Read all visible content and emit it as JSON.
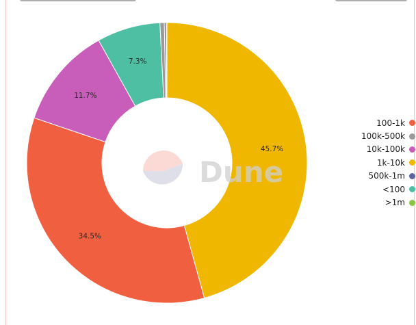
{
  "watermark": {
    "text": "Dune"
  },
  "chart_data": {
    "type": "pie",
    "title": "",
    "slices": [
      {
        "name": "1k-10k",
        "value": 45.7,
        "label": "45.7%",
        "color": "#f0b700"
      },
      {
        "name": "100-1k",
        "value": 34.5,
        "label": "34.5%",
        "color": "#f05f40"
      },
      {
        "name": "10k-100k",
        "value": 11.7,
        "label": "11.7%",
        "color": "#c95dba"
      },
      {
        "name": "<100",
        "value": 7.3,
        "label": "7.3%",
        "color": "#4fbfa4"
      },
      {
        "name": "100k-500k",
        "value": 0.5,
        "label": "",
        "color": "#9a9a9a"
      },
      {
        "name": "500k-1m",
        "value": 0.2,
        "label": "",
        "color": "#5b65a0"
      },
      {
        "name": ">1m",
        "value": 0.1,
        "label": "",
        "color": "#8cc443"
      }
    ],
    "legend": {
      "placement": "right",
      "items": [
        {
          "name": "100-1k",
          "color": "#f05f40"
        },
        {
          "name": "100k-500k",
          "color": "#9a9a9a"
        },
        {
          "name": "10k-100k",
          "color": "#c95dba"
        },
        {
          "name": "1k-10k",
          "color": "#f0b700"
        },
        {
          "name": "500k-1m",
          "color": "#5b65a0"
        },
        {
          "name": "<100",
          "color": "#4fbfa4"
        },
        {
          "name": ">1m",
          "color": "#8cc443"
        }
      ]
    }
  }
}
